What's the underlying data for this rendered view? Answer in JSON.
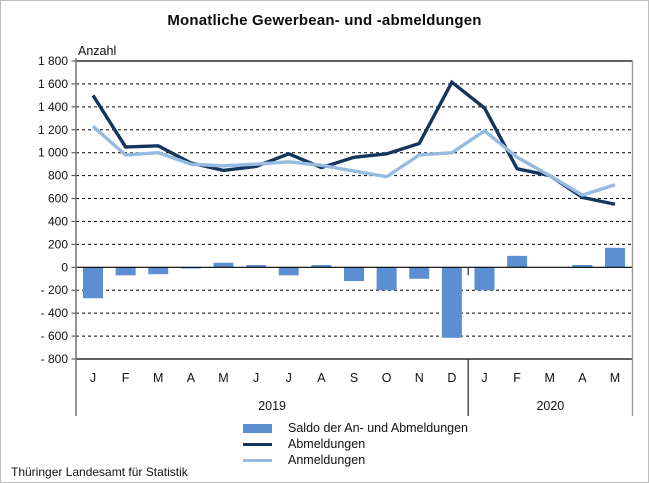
{
  "title": "Monatliche Gewerbean- und -abmeldungen",
  "source": "Thüringer Landesamt für Statistik",
  "chart_data": {
    "type": "combo bar+line",
    "title": "Monatliche Gewerbean- und -abmeldungen",
    "ylabel": "Anzahl",
    "xlabel": "",
    "ylim": [
      -800,
      1800
    ],
    "ytick_step": 200,
    "ytick_labels": [
      "1 800",
      "1 600",
      "1 400",
      "1 200",
      "1 000",
      "800",
      "600",
      "400",
      "200",
      "0",
      "- 200",
      "- 400",
      "- 600",
      "- 800"
    ],
    "grid": "horizontal dashed every 200; solid at 1800, 0 and -800",
    "legend_position": "bottom",
    "categories": [
      "J",
      "F",
      "M",
      "A",
      "M",
      "J",
      "J",
      "A",
      "S",
      "O",
      "N",
      "D",
      "J",
      "F",
      "M",
      "A",
      "M"
    ],
    "year_groups": [
      {
        "label": "2019",
        "count": 12
      },
      {
        "label": "2020",
        "count": 5
      }
    ],
    "series": [
      {
        "name": "Saldo der An- und Abmeldungen",
        "type": "bar",
        "color": "#5B8FD1",
        "values": [
          -270,
          -70,
          -60,
          -10,
          40,
          20,
          -70,
          20,
          -120,
          -200,
          -100,
          -615,
          -200,
          100,
          0,
          20,
          170
        ]
      },
      {
        "name": "Abmeldungen",
        "type": "line",
        "color": "#14355C",
        "values": [
          1500,
          1050,
          1060,
          910,
          845,
          880,
          990,
          870,
          960,
          990,
          1080,
          1615,
          1390,
          860,
          800,
          610,
          550
        ]
      },
      {
        "name": "Anmeldungen",
        "type": "line",
        "color": "#96BAE2",
        "values": [
          1230,
          980,
          1000,
          900,
          885,
          900,
          920,
          890,
          840,
          790,
          980,
          1000,
          1190,
          960,
          800,
          630,
          720
        ]
      }
    ]
  }
}
